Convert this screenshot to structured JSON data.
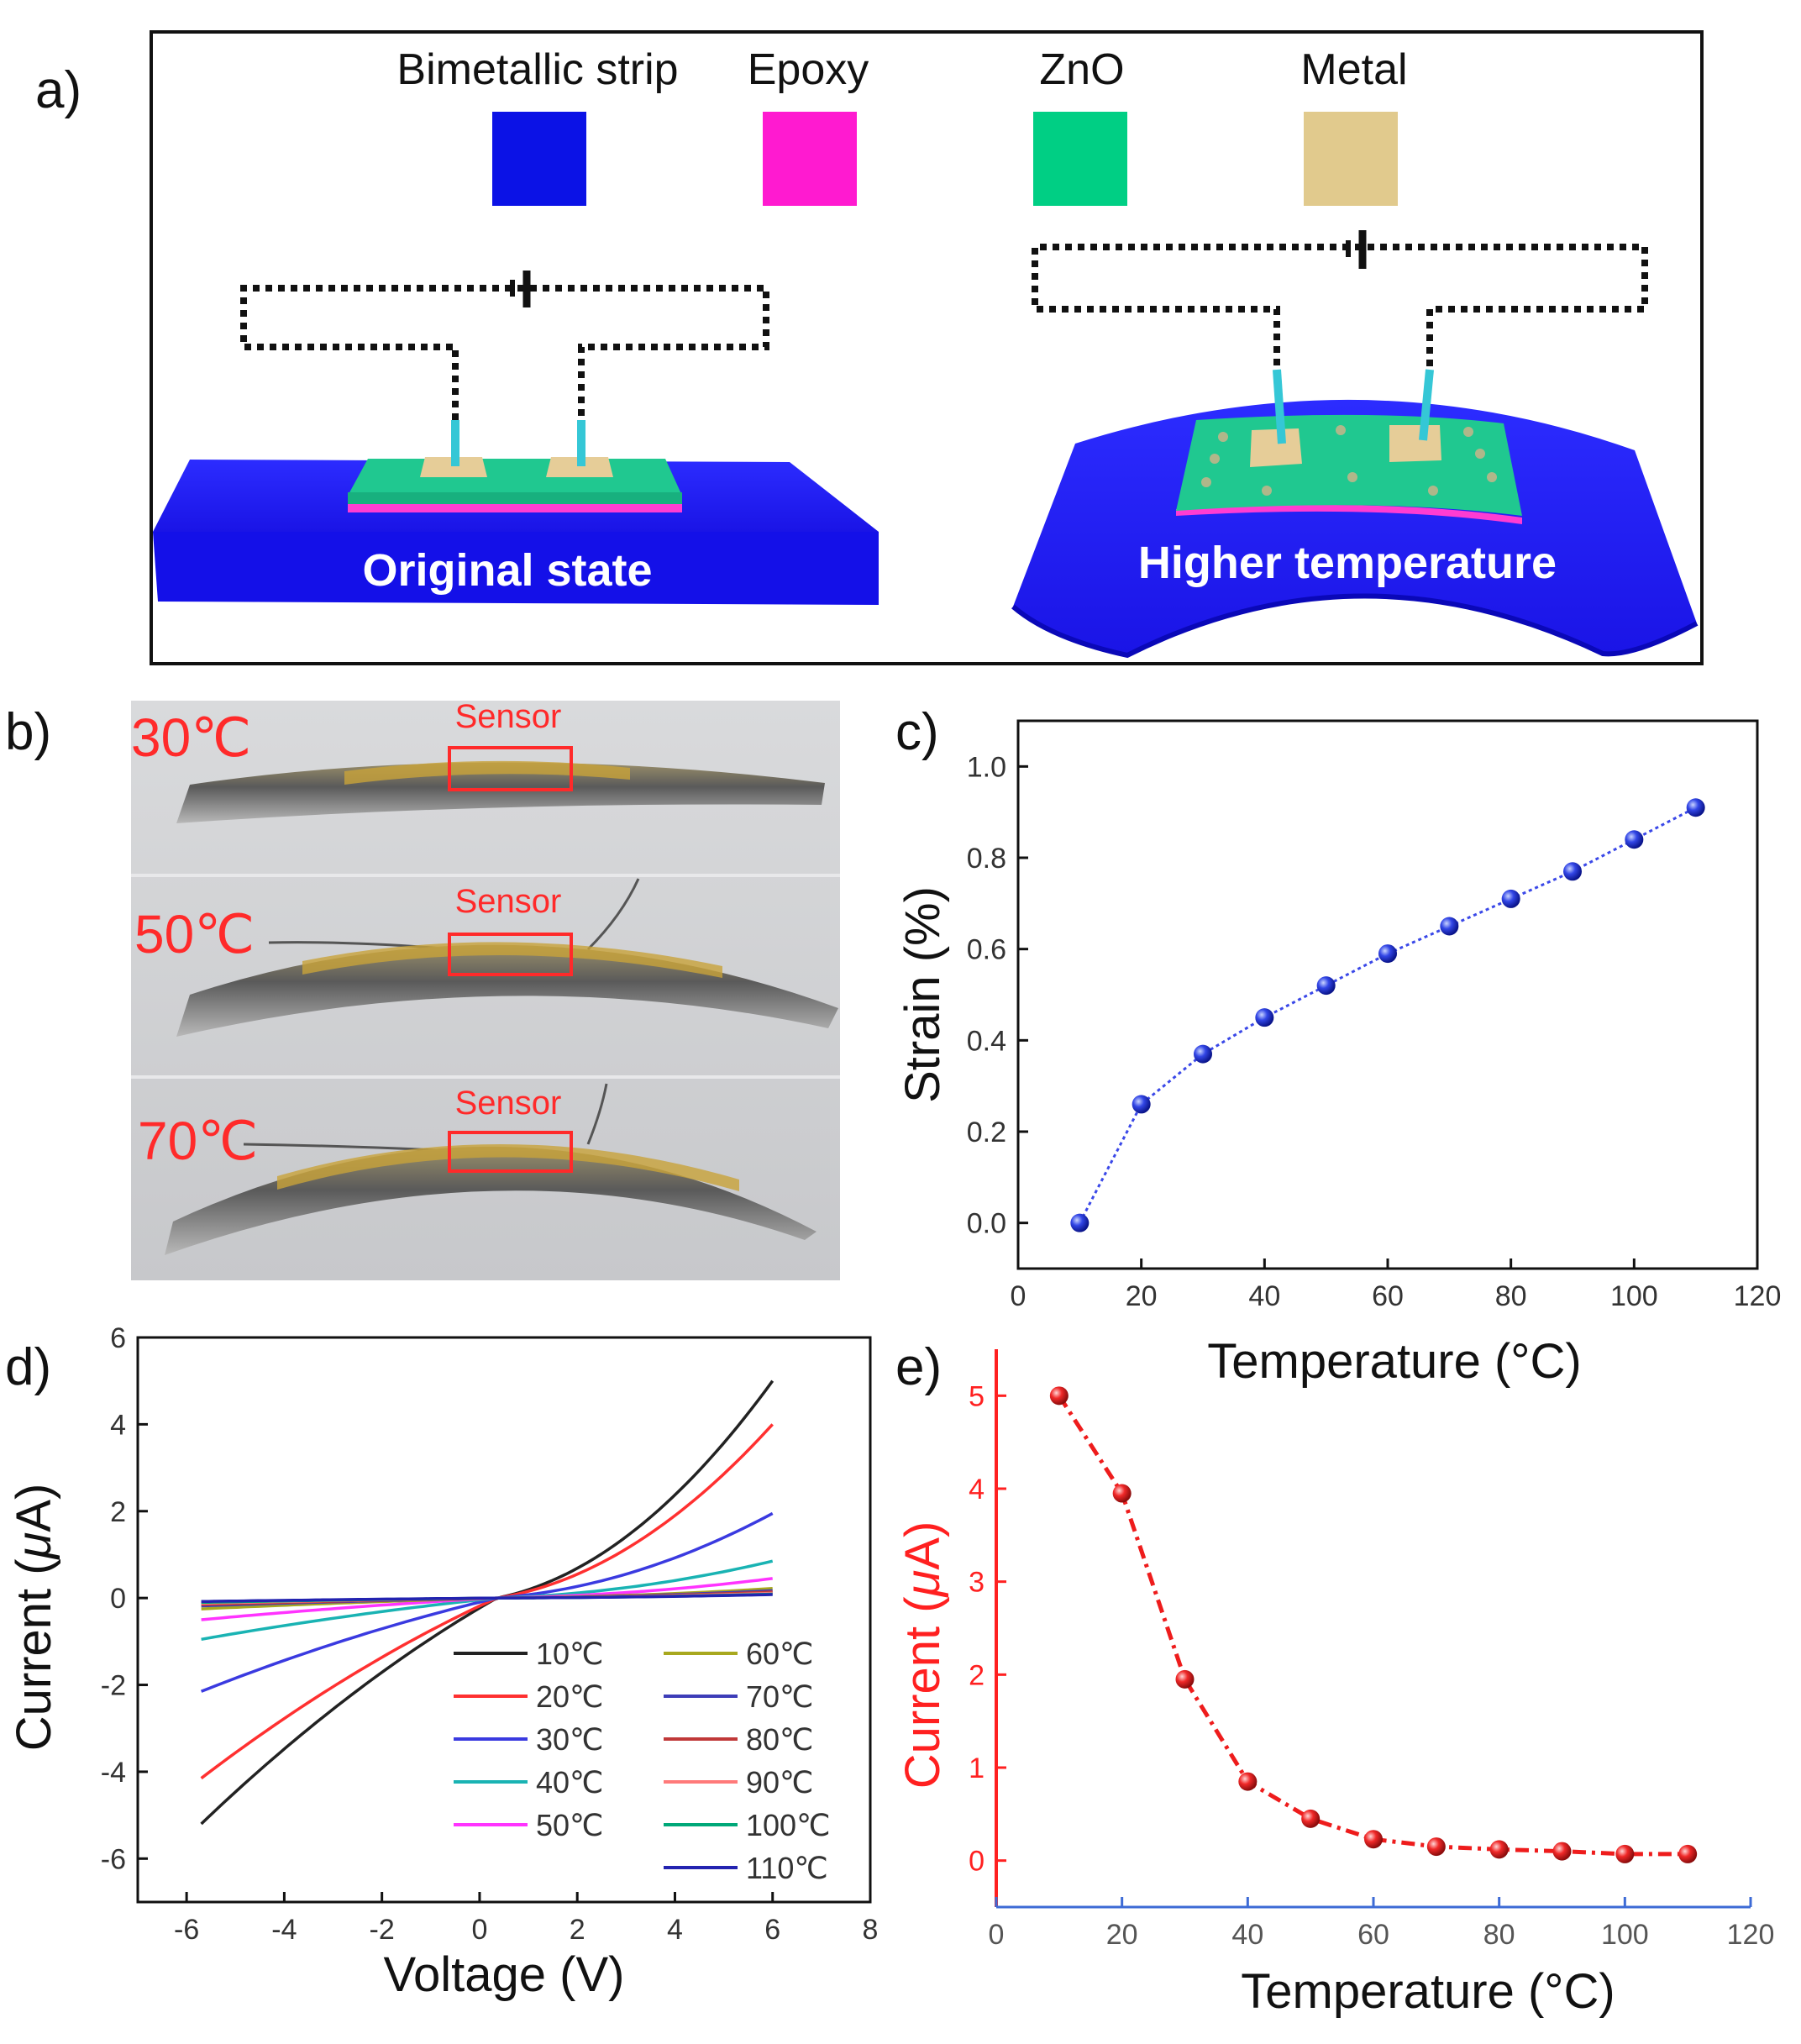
{
  "panel_labels": {
    "a": "a)",
    "b": "b)",
    "c": "c)",
    "d": "d)",
    "e": "e)"
  },
  "panel_a": {
    "legend": [
      {
        "label": "Bimetallic strip",
        "color": "#0b12e6"
      },
      {
        "label": "Epoxy",
        "color": "#ff1ad0"
      },
      {
        "label": "ZnO",
        "color": "#00cf84"
      },
      {
        "label": "Metal",
        "color": "#e1ca8d"
      }
    ],
    "caption_left": "Original state",
    "caption_right": "Higher temperature",
    "colors": {
      "strip": "#1410e8",
      "zno": "#20c890",
      "epoxy": "#ff3cd2",
      "metal": "#e6cd98",
      "electrode": "#35c7d6",
      "wire": "#111111"
    }
  },
  "panel_b": {
    "photos": [
      {
        "temp_label": "30℃",
        "sensor_label": "Sensor"
      },
      {
        "temp_label": "50℃",
        "sensor_label": "Sensor"
      },
      {
        "temp_label": "70℃",
        "sensor_label": "Sensor"
      }
    ],
    "label_color": "#ff2a2a"
  },
  "chart_data": [
    {
      "id": "c",
      "type": "line",
      "xlabel": "Temperature (°C)",
      "ylabel": "Strain (%)",
      "xlim": [
        0,
        120
      ],
      "ylim": [
        -0.1,
        1.1
      ],
      "xticks": [
        0,
        20,
        40,
        60,
        80,
        100,
        120
      ],
      "yticks": [
        0.0,
        0.2,
        0.4,
        0.6,
        0.8,
        1.0
      ],
      "ytick_labels": [
        "0.0",
        "0.2",
        "0.4",
        "0.6",
        "0.8",
        "1.0"
      ],
      "series": [
        {
          "name": "Strain",
          "color": "#1e2bd6",
          "x": [
            10,
            20,
            30,
            40,
            50,
            60,
            70,
            80,
            90,
            100,
            110
          ],
          "y": [
            0.0,
            0.26,
            0.37,
            0.45,
            0.52,
            0.59,
            0.65,
            0.71,
            0.77,
            0.84,
            0.91
          ]
        }
      ]
    },
    {
      "id": "d",
      "type": "line",
      "xlabel": "Voltage (V)",
      "ylabel_prefix": "Current (",
      "ylabel_unit": "μ",
      "ylabel_suffix": "A)",
      "xlim": [
        -7,
        8
      ],
      "ylim": [
        -7,
        6
      ],
      "xticks": [
        -6,
        -4,
        -2,
        0,
        2,
        4,
        6,
        8
      ],
      "yticks": [
        -6,
        -4,
        -2,
        0,
        2,
        4,
        6
      ],
      "legend_columns": 2,
      "series": [
        {
          "name": "10℃",
          "color": "#222222",
          "neg_end": -5.2,
          "pos_end": 5.0
        },
        {
          "name": "20℃",
          "color": "#ff3030",
          "neg_end": -4.15,
          "pos_end": 4.0
        },
        {
          "name": "30℃",
          "color": "#3a3ae0",
          "neg_end": -2.15,
          "pos_end": 1.95
        },
        {
          "name": "40℃",
          "color": "#19b3b3",
          "neg_end": -0.95,
          "pos_end": 0.85
        },
        {
          "name": "50℃",
          "color": "#ff33ff",
          "neg_end": -0.5,
          "pos_end": 0.45
        },
        {
          "name": "60℃",
          "color": "#a8a81e",
          "neg_end": -0.25,
          "pos_end": 0.22
        },
        {
          "name": "70℃",
          "color": "#3d3db8",
          "neg_end": -0.18,
          "pos_end": 0.17
        },
        {
          "name": "80℃",
          "color": "#c03838",
          "neg_end": -0.15,
          "pos_end": 0.14
        },
        {
          "name": "90℃",
          "color": "#ff7a7a",
          "neg_end": -0.12,
          "pos_end": 0.11
        },
        {
          "name": "100℃",
          "color": "#00a878",
          "neg_end": -0.1,
          "pos_end": 0.09
        },
        {
          "name": "110℃",
          "color": "#2323b0",
          "neg_end": -0.08,
          "pos_end": 0.08
        }
      ]
    },
    {
      "id": "e",
      "type": "line",
      "xlabel": "Temperature (°C)",
      "ylabel_prefix": "Current (",
      "ylabel_unit": "μ",
      "ylabel_suffix": "A)",
      "xlim": [
        0,
        120
      ],
      "ylim": [
        -0.5,
        5.5
      ],
      "xticks": [
        0,
        20,
        40,
        60,
        80,
        100,
        120
      ],
      "yticks": [
        0,
        1,
        2,
        3,
        4,
        5
      ],
      "axis_color": "#ff2020",
      "series": [
        {
          "name": "Current",
          "color": "#ee1c1c",
          "x": [
            10,
            20,
            30,
            40,
            50,
            60,
            70,
            80,
            90,
            100,
            110
          ],
          "y": [
            5.0,
            3.95,
            1.95,
            0.85,
            0.45,
            0.23,
            0.15,
            0.12,
            0.1,
            0.07,
            0.07
          ]
        }
      ]
    }
  ]
}
